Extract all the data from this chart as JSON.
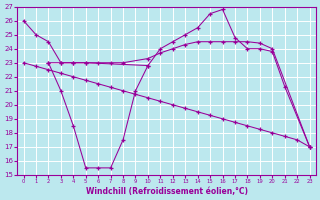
{
  "xlabel": "Windchill (Refroidissement éolien,°C)",
  "color": "#990099",
  "bg_color": "#bce8ee",
  "grid_color": "#ffffff",
  "ylim": [
    15,
    27
  ],
  "xlim": [
    -0.5,
    23.5
  ],
  "yticks": [
    15,
    16,
    17,
    18,
    19,
    20,
    21,
    22,
    23,
    24,
    25,
    26,
    27
  ],
  "xticks": [
    0,
    1,
    2,
    3,
    4,
    5,
    6,
    7,
    8,
    9,
    10,
    11,
    12,
    13,
    14,
    15,
    16,
    17,
    18,
    19,
    20,
    21,
    22,
    23
  ],
  "lines": [
    {
      "x": [
        0,
        1,
        2,
        3,
        4,
        5,
        10,
        11,
        12,
        13,
        14,
        15,
        16,
        17,
        18,
        19,
        20,
        21,
        23
      ],
      "y": [
        26.0,
        25.0,
        24.5,
        23.0,
        23.0,
        23.0,
        22.8,
        24.0,
        24.5,
        25.0,
        25.5,
        26.5,
        26.8,
        24.8,
        24.0,
        24.0,
        23.8,
        21.3,
        17.0
      ]
    },
    {
      "x": [
        2,
        3,
        4,
        5,
        6,
        7,
        8,
        10,
        11,
        12,
        13,
        14,
        15,
        16,
        17,
        18,
        19,
        20,
        23
      ],
      "y": [
        23.0,
        23.0,
        23.0,
        23.0,
        23.0,
        23.0,
        23.0,
        23.3,
        23.7,
        24.0,
        24.3,
        24.5,
        24.5,
        24.5,
        24.5,
        24.5,
        24.4,
        24.0,
        17.0
      ]
    },
    {
      "x": [
        0,
        1,
        2,
        3,
        4,
        5,
        6,
        7,
        8,
        9,
        10,
        11,
        12,
        13,
        14,
        15,
        16,
        17,
        18,
        19,
        20,
        21,
        22,
        23
      ],
      "y": [
        23.0,
        22.75,
        22.5,
        22.25,
        22.0,
        21.75,
        21.5,
        21.25,
        21.0,
        20.75,
        20.5,
        20.25,
        20.0,
        19.75,
        19.5,
        19.25,
        19.0,
        18.75,
        18.5,
        18.25,
        18.0,
        17.75,
        17.5,
        17.0
      ]
    },
    {
      "x": [
        2,
        3,
        4,
        5,
        6,
        7,
        8,
        9,
        10
      ],
      "y": [
        23.0,
        21.0,
        18.5,
        15.5,
        15.5,
        15.5,
        17.5,
        21.0,
        22.8
      ]
    }
  ]
}
